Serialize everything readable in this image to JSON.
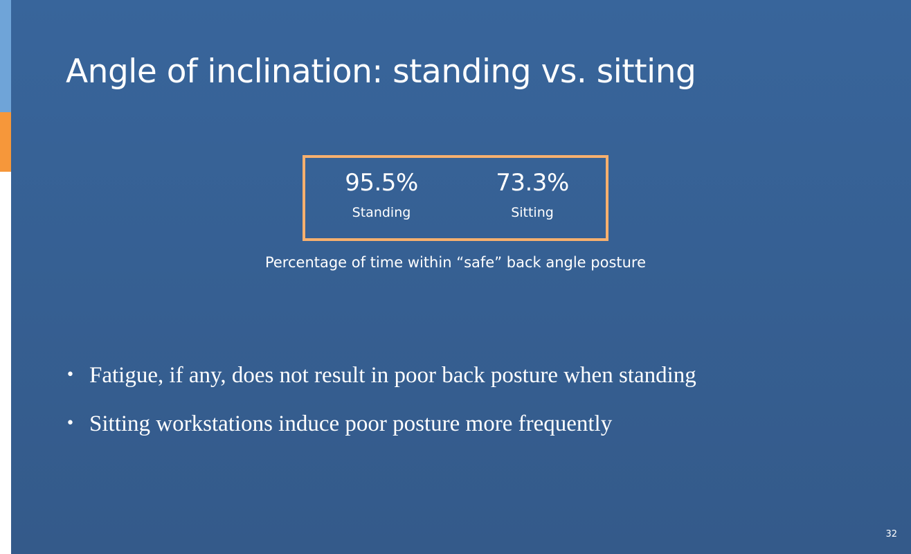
{
  "slide": {
    "title": "Angle of inclination: standing vs. sitting",
    "stats": [
      {
        "value": "95.5%",
        "label": "Standing"
      },
      {
        "value": "73.3%",
        "label": "Sitting"
      }
    ],
    "caption": "Percentage of time within “safe” back angle posture",
    "bullet_marker": "•",
    "bullets": [
      "Fatigue, if any, does not result in poor back posture when standing",
      "Sitting workstations induce poor posture more frequently"
    ],
    "page_number": "32"
  },
  "colors": {
    "background_top": "#38659b",
    "background_bottom": "#345a8a",
    "accent_blue": "#6fa4d8",
    "accent_orange": "#f6973a",
    "box_border": "#f7b06e",
    "text": "#ffffff"
  }
}
